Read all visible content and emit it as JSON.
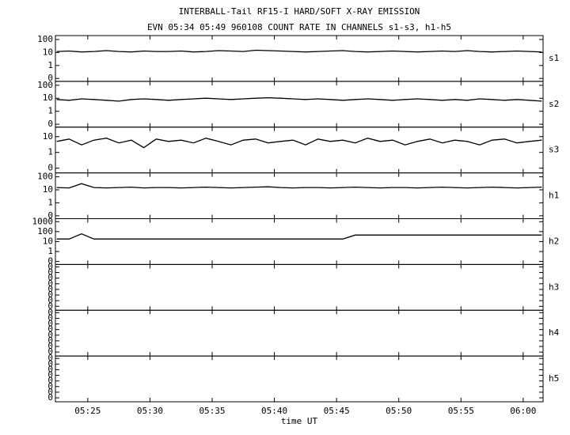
{
  "chart_data": {
    "type": "line",
    "title": "INTERBALL-Tail RF15-I HARD/SOFT X-RAY EMISSION",
    "subtitle": "EVN 05:34 05:49 960108  COUNT RATE IN CHANNELS s1-s3, h1-h5",
    "xlabel": "time UT",
    "log_scale": true,
    "xlim": [
      322.4,
      361.6
    ],
    "xticks": [
      {
        "value": 325,
        "label": "05:25"
      },
      {
        "value": 330,
        "label": "05:30"
      },
      {
        "value": 335,
        "label": "05:35"
      },
      {
        "value": 340,
        "label": "05:40"
      },
      {
        "value": 345,
        "label": "05:45"
      },
      {
        "value": 350,
        "label": "05:50"
      },
      {
        "value": 355,
        "label": "05:55"
      },
      {
        "value": 360,
        "label": "06:00"
      }
    ],
    "x": [
      322.5,
      323.5,
      324.5,
      325.5,
      326.5,
      327.5,
      328.5,
      329.5,
      330.5,
      331.5,
      332.5,
      333.5,
      334.5,
      335.5,
      336.5,
      337.5,
      338.5,
      339.5,
      340.5,
      341.5,
      342.5,
      343.5,
      344.5,
      345.5,
      346.5,
      347.5,
      348.5,
      349.5,
      350.5,
      351.5,
      352.5,
      353.5,
      354.5,
      355.5,
      356.5,
      357.5,
      358.5,
      359.5,
      360.5,
      361.5
    ],
    "series": [
      {
        "name": "s1",
        "color": "#000000",
        "ylim": [
          0.06,
          200
        ],
        "yticks": [
          100,
          10,
          1,
          {
            "value": 0.1,
            "label": "0"
          }
        ],
        "values": [
          12,
          13,
          11,
          12,
          14,
          12,
          11,
          13,
          12,
          12,
          13,
          11,
          12,
          14,
          13,
          12,
          15,
          14,
          13,
          12,
          11,
          12,
          13,
          14,
          12,
          11,
          12,
          13,
          12,
          11,
          12,
          13,
          12,
          14,
          12,
          11,
          12,
          13,
          12,
          11
        ]
      },
      {
        "name": "s2",
        "color": "#000000",
        "ylim": [
          0.06,
          200
        ],
        "yticks": [
          100,
          10,
          1,
          {
            "value": 0.1,
            "label": "0"
          }
        ],
        "values": [
          8,
          7,
          9,
          8,
          7,
          6,
          8,
          9,
          8,
          7,
          8,
          9,
          10,
          9,
          8,
          9,
          10,
          11,
          10,
          9,
          8,
          9,
          8,
          7,
          8,
          9,
          8,
          7,
          8,
          9,
          8,
          7,
          8,
          7,
          9,
          8,
          7,
          8,
          7,
          6
        ]
      },
      {
        "name": "s3",
        "color": "#000000",
        "ylim": [
          0.05,
          40
        ],
        "yticks": [
          10,
          1,
          {
            "value": 0.1,
            "label": "0"
          }
        ],
        "values": [
          5,
          7,
          3,
          6,
          8,
          4,
          6,
          2,
          7,
          5,
          6,
          4,
          8,
          5,
          3,
          6,
          7,
          4,
          5,
          6,
          3,
          7,
          5,
          6,
          4,
          8,
          5,
          6,
          3,
          5,
          7,
          4,
          6,
          5,
          3,
          6,
          7,
          4,
          5,
          6
        ]
      },
      {
        "name": "h1",
        "color": "#000000",
        "ylim": [
          0.06,
          200
        ],
        "yticks": [
          100,
          10,
          1,
          {
            "value": 0.1,
            "label": "0"
          }
        ],
        "values": [
          15,
          14,
          30,
          15,
          14,
          15,
          16,
          14,
          15,
          15,
          14,
          15,
          16,
          15,
          14,
          15,
          16,
          17,
          15,
          14,
          15,
          15,
          14,
          15,
          16,
          15,
          14,
          15,
          15,
          14,
          15,
          16,
          15,
          14,
          15,
          16,
          15,
          14,
          15,
          16
        ]
      },
      {
        "name": "h2",
        "color": "#000000",
        "ylim": [
          0.05,
          2000
        ],
        "yticks": [
          1000,
          100,
          10,
          1,
          {
            "value": 0.1,
            "label": "0"
          }
        ],
        "values": [
          18,
          18,
          60,
          18,
          18,
          18,
          18,
          18,
          18,
          18,
          18,
          18,
          18,
          18,
          18,
          18,
          18,
          18,
          18,
          18,
          18,
          18,
          18,
          18,
          45,
          45,
          45,
          45,
          45,
          45,
          45,
          45,
          45,
          45,
          45,
          45,
          45,
          45,
          45,
          45
        ]
      },
      {
        "name": "h3",
        "color": "#000000",
        "ylim": [
          2e-09,
          0.27
        ],
        "yticks": [
          {
            "value": 0.1,
            "label": "0"
          },
          {
            "value": 0.01,
            "label": "0"
          },
          {
            "value": 0.001,
            "label": "0"
          },
          {
            "value": 0.0001,
            "label": "0"
          },
          {
            "value": 1e-05,
            "label": "0"
          },
          {
            "value": 1e-06,
            "label": "0"
          },
          {
            "value": 1e-07,
            "label": "0"
          },
          {
            "value": 1e-08,
            "label": "0"
          }
        ]
      },
      {
        "name": "h4",
        "color": "#000000",
        "ylim": [
          2e-09,
          0.27
        ],
        "yticks": [
          {
            "value": 0.1,
            "label": "0"
          },
          {
            "value": 0.01,
            "label": "0"
          },
          {
            "value": 0.001,
            "label": "0"
          },
          {
            "value": 0.0001,
            "label": "0"
          },
          {
            "value": 1e-05,
            "label": "0"
          },
          {
            "value": 1e-06,
            "label": "0"
          },
          {
            "value": 1e-07,
            "label": "0"
          },
          {
            "value": 1e-08,
            "label": "0"
          }
        ]
      },
      {
        "name": "h5",
        "color": "#000000",
        "ylim": [
          2e-09,
          0.27
        ],
        "yticks": [
          {
            "value": 0.1,
            "label": "0"
          },
          {
            "value": 0.01,
            "label": "0"
          },
          {
            "value": 0.001,
            "label": "0"
          },
          {
            "value": 0.0001,
            "label": "0"
          },
          {
            "value": 1e-05,
            "label": "0"
          },
          {
            "value": 1e-06,
            "label": "0"
          },
          {
            "value": 1e-07,
            "label": "0"
          },
          {
            "value": 1e-08,
            "label": "0"
          }
        ]
      }
    ]
  }
}
